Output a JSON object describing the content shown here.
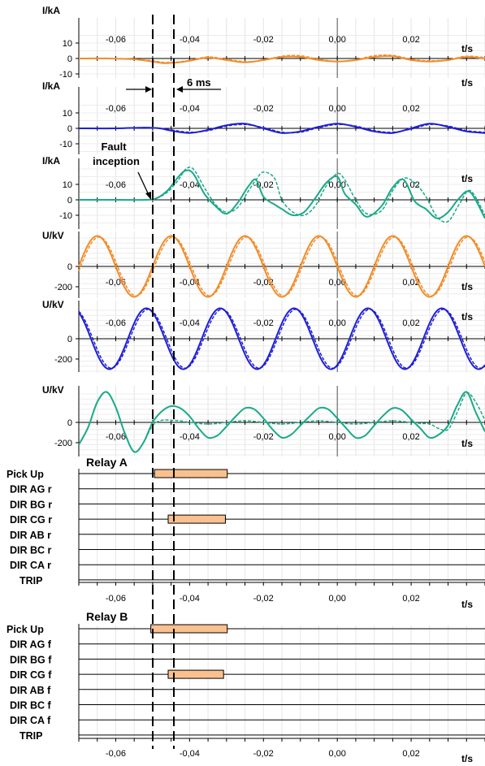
{
  "time_unit": "t/s",
  "tick_labels": [
    "-0,06",
    "-0,04",
    "-0,02",
    "0,00",
    "0,02"
  ],
  "annotations": {
    "fault": [
      "Fault",
      "inception"
    ],
    "delay": "6 ms"
  },
  "colors": {
    "phase_a": "#F28C28",
    "phase_b": "#1F1FD6",
    "phase_c": "#1AAA88"
  },
  "chart_data": [
    {
      "type": "line",
      "id": "ia",
      "ylabel": "I/kA",
      "xlabel": "t/s",
      "xlim": [
        -0.07,
        0.04
      ],
      "ylim": [
        -10,
        10
      ],
      "yticks": [
        {
          "v": 10,
          "t": "10"
        },
        {
          "v": 0,
          "t": "0"
        },
        {
          "v": -10,
          "t": "-10"
        }
      ],
      "series": [
        {
          "style": "solid",
          "x": [
            -0.07,
            -0.062,
            -0.055,
            -0.05,
            -0.047,
            -0.043,
            -0.04,
            -0.035,
            -0.03,
            -0.025,
            -0.02,
            -0.015,
            -0.01,
            -0.005,
            0.0,
            0.005,
            0.01,
            0.015,
            0.02,
            0.025,
            0.03,
            0.035,
            0.04
          ],
          "y": [
            0,
            0,
            -0.5,
            -2,
            -3,
            -2.5,
            -1.5,
            0.5,
            -1,
            -2.5,
            -1,
            1,
            1,
            -1,
            -2,
            -1,
            1,
            1.5,
            -1,
            -2,
            -1,
            1,
            0
          ]
        },
        {
          "style": "dashed",
          "x": [
            -0.07,
            -0.062,
            -0.055,
            -0.05,
            -0.047,
            -0.043,
            -0.04,
            -0.035,
            -0.03,
            -0.025,
            -0.02,
            -0.015,
            -0.01,
            -0.005,
            0.0,
            0.005,
            0.01,
            0.015,
            0.02,
            0.025,
            0.03,
            0.035,
            0.04
          ],
          "y": [
            0,
            0,
            -0.5,
            -1.5,
            -2.5,
            -2.2,
            -1.2,
            1,
            -0.5,
            -2,
            -1.2,
            1.5,
            1.8,
            -0.5,
            -1.8,
            -0.8,
            1.8,
            2,
            -0.5,
            -1.5,
            -0.8,
            1.5,
            0.5
          ]
        }
      ]
    },
    {
      "type": "line",
      "id": "ib",
      "ylabel": "I/kA",
      "xlabel": "t/s",
      "xlim": [
        -0.07,
        0.04
      ],
      "ylim": [
        -10,
        10
      ],
      "yticks": [
        {
          "v": 10,
          "t": "10"
        },
        {
          "v": 0,
          "t": "0"
        },
        {
          "v": -10,
          "t": "-10"
        }
      ],
      "series": [
        {
          "style": "solid",
          "x": [
            -0.07,
            -0.06,
            -0.052,
            -0.048,
            -0.045,
            -0.04,
            -0.035,
            -0.03,
            -0.025,
            -0.02,
            -0.015,
            -0.01,
            -0.005,
            0.0,
            0.005,
            0.01,
            0.015,
            0.02,
            0.025,
            0.03,
            0.035,
            0.04
          ],
          "y": [
            0,
            0,
            0.5,
            0,
            -1.5,
            -3,
            -1,
            2,
            3,
            0,
            -3,
            -2,
            1,
            3,
            1,
            -2,
            -3,
            0,
            3,
            1,
            -2,
            -3
          ]
        },
        {
          "style": "dashed",
          "x": [
            -0.07,
            -0.06,
            -0.052,
            -0.048,
            -0.045,
            -0.04,
            -0.035,
            -0.03,
            -0.025,
            -0.02,
            -0.015,
            -0.01,
            -0.005,
            0.0,
            0.005,
            0.01,
            0.015,
            0.02,
            0.025,
            0.03,
            0.035,
            0.04
          ],
          "y": [
            0,
            0,
            0.5,
            0,
            -1,
            -2.5,
            -1.5,
            1.5,
            2.5,
            0.5,
            -2.5,
            -2.5,
            0.5,
            2.5,
            1.5,
            -1.5,
            -2.5,
            -0.5,
            2.5,
            1.5,
            -1.5,
            -2.5
          ]
        }
      ]
    },
    {
      "type": "line",
      "id": "ic",
      "ylabel": "I/kA",
      "xlabel": "t/s",
      "xlim": [
        -0.07,
        0.04
      ],
      "ylim": [
        -10,
        10
      ],
      "yticks": [
        {
          "v": 10,
          "t": "10"
        },
        {
          "v": 0,
          "t": "0"
        },
        {
          "v": -10,
          "t": "-10"
        }
      ],
      "series": [
        {
          "style": "solid",
          "x": [
            -0.07,
            -0.06,
            -0.052,
            -0.049,
            -0.046,
            -0.043,
            -0.041,
            -0.039,
            -0.036,
            -0.033,
            -0.03,
            -0.027,
            -0.024,
            -0.022,
            -0.02,
            -0.017,
            -0.015,
            -0.012,
            -0.009,
            -0.006,
            -0.003,
            0.0,
            0.002,
            0.005,
            0.008,
            0.012,
            0.015,
            0.018,
            0.021,
            0.024,
            0.027,
            0.03,
            0.033,
            0.036,
            0.04
          ],
          "y": [
            0,
            0,
            0,
            1,
            6,
            15,
            19,
            17,
            4,
            -4,
            -9,
            -2,
            9,
            13,
            2,
            -3,
            -6,
            -10,
            -8,
            1,
            11,
            15,
            4,
            -3,
            -11,
            -4,
            8,
            13,
            -1,
            -6,
            -12,
            -8,
            1,
            5,
            -12
          ]
        },
        {
          "style": "dashed",
          "x": [
            -0.07,
            -0.06,
            -0.052,
            -0.049,
            -0.046,
            -0.043,
            -0.041,
            -0.039,
            -0.036,
            -0.033,
            -0.03,
            -0.027,
            -0.024,
            -0.022,
            -0.02,
            -0.017,
            -0.015,
            -0.012,
            -0.009,
            -0.006,
            -0.003,
            0.0,
            0.002,
            0.005,
            0.008,
            0.012,
            0.015,
            0.018,
            0.021,
            0.024,
            0.027,
            0.03,
            0.033,
            0.036,
            0.04
          ],
          "y": [
            0,
            0,
            0,
            1,
            5,
            13,
            20,
            20,
            8,
            -3,
            -8,
            -5,
            6,
            13,
            18,
            14,
            0,
            -8,
            -10,
            -4,
            9,
            17,
            13,
            0,
            -9,
            -7,
            6,
            14,
            11,
            2,
            -11,
            -14,
            -3,
            6,
            -10
          ]
        }
      ]
    },
    {
      "type": "line",
      "id": "ua",
      "ylabel": "U/kV",
      "xlabel": "t/s",
      "xlim": [
        -0.07,
        0.04
      ],
      "ylim": [
        -350,
        350
      ],
      "yticks": [
        {
          "v": 0,
          "t": "0"
        },
        {
          "v": -200,
          "t": "-200"
        }
      ],
      "series": [
        {
          "style": "solid",
          "kind": "sine",
          "amp": 300,
          "period": 0.02,
          "peak_at": -0.065
        },
        {
          "style": "dashed",
          "kind": "sine",
          "amp": 290,
          "period": 0.02,
          "peak_at": -0.0645
        }
      ]
    },
    {
      "type": "line",
      "id": "ub",
      "ylabel": "U/kV",
      "xlabel": "t/s",
      "xlim": [
        -0.07,
        0.04
      ],
      "ylim": [
        -350,
        350
      ],
      "yticks": [
        {
          "v": 0,
          "t": "0"
        },
        {
          "v": -200,
          "t": "-200"
        }
      ],
      "series": [
        {
          "style": "solid",
          "kind": "sine",
          "amp": 300,
          "period": 0.02,
          "peak_at": -0.0517
        },
        {
          "style": "dashed",
          "kind": "sine",
          "amp": 290,
          "period": 0.02,
          "peak_at": -0.0512
        }
      ]
    },
    {
      "type": "line",
      "id": "uc",
      "ylabel": "U/kV",
      "xlabel": "t/s",
      "xlim": [
        -0.07,
        0.04
      ],
      "ylim": [
        -350,
        350
      ],
      "yticks": [
        {
          "v": 0,
          "t": "0"
        },
        {
          "v": -200,
          "t": "-200"
        }
      ],
      "series": [
        {
          "style": "solid",
          "x": [
            -0.07,
            -0.0675,
            -0.065,
            -0.0625,
            -0.06,
            -0.0575,
            -0.055,
            -0.0525,
            -0.05,
            -0.0475,
            -0.045,
            -0.0425,
            -0.04,
            -0.0375,
            -0.035,
            -0.0325,
            -0.03,
            -0.0275,
            -0.025,
            -0.0225,
            -0.02,
            -0.0175,
            -0.015,
            -0.0125,
            -0.01,
            -0.0075,
            -0.005,
            -0.0025,
            0.0,
            0.0025,
            0.005,
            0.0075,
            0.01,
            0.0125,
            0.015,
            0.0175,
            0.02,
            0.0225,
            0.025,
            0.0275,
            0.03,
            0.0325,
            0.035,
            0.0375,
            0.04
          ],
          "y": [
            -220,
            -50,
            200,
            300,
            150,
            -110,
            -290,
            -200,
            0,
            110,
            160,
            140,
            60,
            -60,
            -150,
            -130,
            -40,
            60,
            140,
            130,
            40,
            -70,
            -150,
            -120,
            -30,
            60,
            140,
            130,
            40,
            -60,
            -150,
            -130,
            -30,
            70,
            140,
            120,
            30,
            -60,
            -150,
            -120,
            -30,
            170,
            300,
            100,
            -90
          ]
        },
        {
          "style": "dashed",
          "x": [
            -0.07,
            -0.0675,
            -0.065,
            -0.0625,
            -0.06,
            -0.0575,
            -0.055,
            -0.0525,
            -0.05,
            -0.0475,
            -0.045,
            -0.0425,
            -0.04,
            -0.0375,
            -0.035,
            -0.0325,
            -0.03,
            -0.0275,
            -0.025,
            -0.0225,
            -0.02,
            -0.0175,
            -0.015,
            -0.0125,
            -0.01,
            -0.0075,
            -0.005,
            -0.0025,
            0.0,
            0.0025,
            0.005,
            0.0075,
            0.01,
            0.0125,
            0.015,
            0.0175,
            0.02,
            0.0225,
            0.025,
            0.0275,
            0.03,
            0.0325,
            0.035,
            0.0375,
            0.04
          ],
          "y": [
            -220,
            -50,
            200,
            300,
            150,
            -110,
            -290,
            -200,
            -30,
            20,
            20,
            15,
            0,
            -10,
            -15,
            -10,
            0,
            10,
            15,
            10,
            0,
            -10,
            -15,
            -10,
            0,
            10,
            15,
            10,
            0,
            -10,
            -15,
            -10,
            0,
            10,
            15,
            10,
            0,
            -10,
            -15,
            -60,
            -70,
            100,
            290,
            200,
            20
          ]
        }
      ]
    },
    {
      "type": "table",
      "id": "relay_a",
      "title": "Relay A",
      "xlim": [
        -0.07,
        0.04
      ],
      "rows": [
        "Pick Up",
        "DIR AG r",
        "DIR BG r",
        "DIR CG r",
        "DIR AB r",
        "DIR BC r",
        "DIR CA r",
        "TRIP"
      ],
      "bars": [
        {
          "row": 0,
          "start": -0.0495,
          "end": -0.0298
        },
        {
          "row": 3,
          "start": -0.0458,
          "end": -0.0303
        }
      ],
      "xlabel": "t/s"
    },
    {
      "type": "table",
      "id": "relay_b",
      "title": "Relay B",
      "xlim": [
        -0.07,
        0.04
      ],
      "rows": [
        "Pick Up",
        "DIR AG f",
        "DIR BG f",
        "DIR CG f",
        "DIR AB f",
        "DIR BC f",
        "DIR CA f",
        "TRIP"
      ],
      "bars": [
        {
          "row": 0,
          "start": -0.0505,
          "end": -0.0298
        },
        {
          "row": 3,
          "start": -0.0458,
          "end": -0.0308
        }
      ],
      "xlabel": "t/s"
    }
  ]
}
